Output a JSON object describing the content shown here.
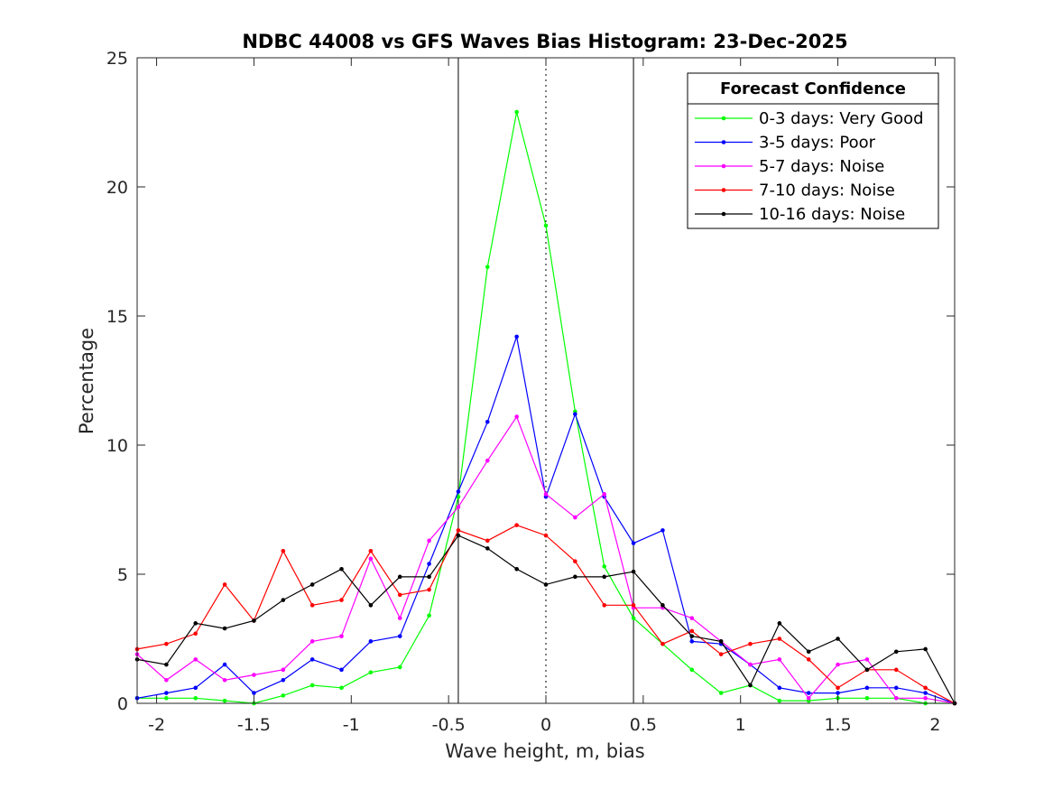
{
  "chart_data": {
    "type": "line",
    "title": "NDBC 44008 vs GFS Waves Bias Histogram: 23-Dec-2025",
    "xlabel": "Wave height, m, bias",
    "ylabel": "Percentage",
    "xlim": [
      -2.1,
      2.1
    ],
    "ylim": [
      0,
      25
    ],
    "xticks": [
      -2,
      -1.5,
      -1,
      -0.5,
      0,
      0.5,
      1,
      1.5,
      2
    ],
    "xtick_labels": [
      "-2",
      "-1.5",
      "-1",
      "-0.5",
      "0",
      "0.5",
      "1",
      "1.5",
      "2"
    ],
    "yticks": [
      0,
      5,
      10,
      15,
      20,
      25
    ],
    "ytick_labels": [
      "0",
      "5",
      "10",
      "15",
      "20",
      "25"
    ],
    "grid": false,
    "reference_lines": [
      {
        "x": -0.45,
        "style": "solid"
      },
      {
        "x": 0,
        "style": "dotted"
      },
      {
        "x": 0.45,
        "style": "solid"
      }
    ],
    "legend": {
      "title": "Forecast Confidence",
      "position": "top-right"
    },
    "x": [
      -2.1,
      -1.95,
      -1.8,
      -1.65,
      -1.5,
      -1.35,
      -1.2,
      -1.05,
      -0.9,
      -0.75,
      -0.6,
      -0.45,
      -0.3,
      -0.15,
      0,
      0.15,
      0.3,
      0.45,
      0.6,
      0.75,
      0.9,
      1.05,
      1.2,
      1.35,
      1.5,
      1.65,
      1.8,
      1.95,
      2.1
    ],
    "series": [
      {
        "name": "0-3 days: Very Good",
        "color": "#00ff00",
        "values": [
          0.2,
          0.2,
          0.2,
          0.1,
          0.0,
          0.3,
          0.7,
          0.6,
          1.2,
          1.4,
          3.4,
          8.0,
          16.9,
          22.9,
          18.5,
          11.3,
          5.3,
          3.3,
          2.3,
          1.3,
          0.4,
          0.7,
          0.1,
          0.1,
          0.2,
          0.2,
          0.2,
          0.0,
          0.0
        ]
      },
      {
        "name": "3-5 days: Poor",
        "color": "#0000ff",
        "values": [
          0.2,
          0.4,
          0.6,
          1.5,
          0.4,
          0.9,
          1.7,
          1.3,
          2.4,
          2.6,
          5.4,
          8.2,
          10.9,
          14.2,
          8.0,
          11.2,
          8.0,
          6.2,
          6.7,
          2.4,
          2.3,
          1.5,
          0.6,
          0.4,
          0.4,
          0.6,
          0.6,
          0.4,
          0.0
        ]
      },
      {
        "name": "5-7 days: Noise",
        "color": "#ff00ff",
        "values": [
          1.9,
          0.9,
          1.7,
          0.9,
          1.1,
          1.3,
          2.4,
          2.6,
          5.6,
          3.3,
          6.3,
          7.6,
          9.4,
          11.1,
          8.1,
          7.2,
          8.1,
          3.7,
          3.7,
          3.3,
          2.4,
          1.5,
          1.7,
          0.2,
          1.5,
          1.7,
          0.2,
          0.2,
          0.0
        ]
      },
      {
        "name": "7-10 days: Noise",
        "color": "#ff0000",
        "values": [
          2.1,
          2.3,
          2.7,
          4.6,
          3.2,
          5.9,
          3.8,
          4.0,
          5.9,
          4.2,
          4.4,
          6.7,
          6.3,
          6.9,
          6.5,
          5.5,
          3.8,
          3.8,
          2.3,
          2.8,
          1.9,
          2.3,
          2.5,
          1.7,
          0.6,
          1.3,
          1.3,
          0.6,
          0.0
        ]
      },
      {
        "name": "10-16 days: Noise",
        "color": "#000000",
        "values": [
          1.7,
          1.5,
          3.1,
          2.9,
          3.2,
          4.0,
          4.6,
          5.2,
          3.8,
          4.9,
          4.9,
          6.5,
          6.0,
          5.2,
          4.6,
          4.9,
          4.9,
          5.1,
          3.8,
          2.6,
          2.4,
          0.7,
          3.1,
          2.0,
          2.5,
          1.3,
          2.0,
          2.1,
          0.0
        ]
      }
    ]
  }
}
